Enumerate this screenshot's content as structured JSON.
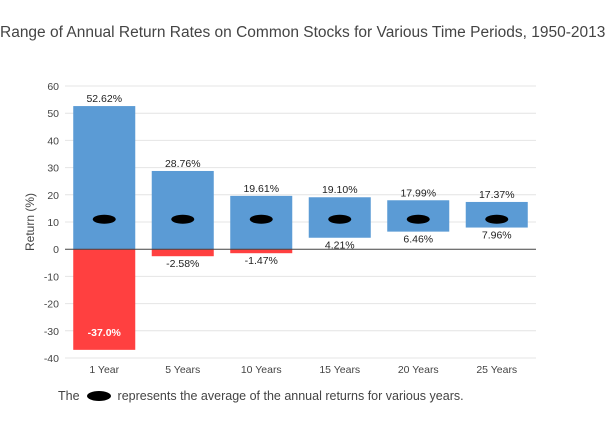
{
  "chart_data": {
    "type": "bar",
    "title": "Range of Annual Return Rates on Common Stocks for Various Time Periods, 1950-2013",
    "ylabel": "Return (%)",
    "xlabel": "",
    "ylim": [
      -40,
      60
    ],
    "yticks": [
      -40,
      -30,
      -20,
      -10,
      0,
      10,
      20,
      30,
      40,
      50,
      60
    ],
    "grid": true,
    "categories": [
      "1 Year",
      "5 Years",
      "10 Years",
      "15 Years",
      "20 Years",
      "25 Years"
    ],
    "series": [
      {
        "values": [
          52.62,
          28.76,
          19.61,
          19.1,
          17.99,
          17.37
        ],
        "labels": [
          "52.62%",
          "28.76%",
          "19.61%",
          "19.10%",
          "17.99%",
          "17.37%"
        ]
      },
      {
        "values": [
          -37.0,
          -2.58,
          -1.47,
          4.21,
          6.46,
          7.96
        ],
        "labels": [
          "-37.0%",
          "-2.58%",
          "-1.47%",
          "4.21%",
          "6.46%",
          "7.96%"
        ]
      },
      {
        "values": [
          11,
          11,
          11,
          11,
          11,
          11
        ]
      }
    ],
    "colors": {
      "positive": "#5b9bd5",
      "negative": "#ff4040",
      "marker": "#000000",
      "grid": "#e4e4e4"
    }
  },
  "footnote": {
    "before": "The",
    "after": "represents the average of the annual returns for various years."
  }
}
